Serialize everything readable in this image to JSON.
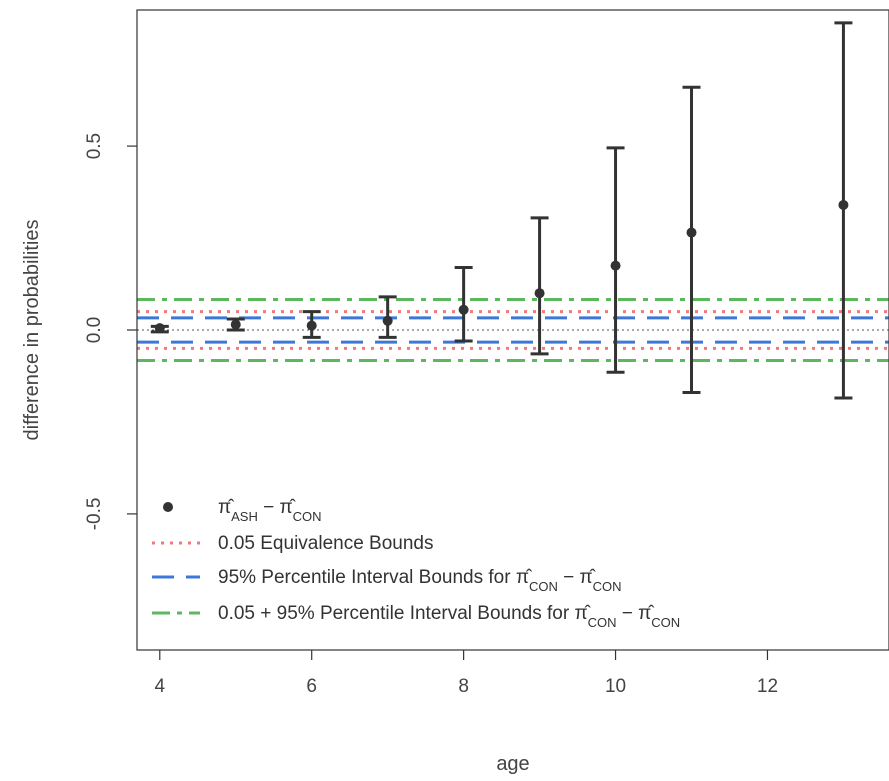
{
  "chart_data": {
    "type": "scatter",
    "xlabel": "age",
    "ylabel": "difference in probabilities",
    "xlim": [
      3.7,
      13.6
    ],
    "ylim": [
      -0.87,
      0.87
    ],
    "x_ticks": [
      4,
      6,
      8,
      10,
      12
    ],
    "y_ticks": [
      -0.5,
      0.0,
      0.5
    ],
    "x_tick_labels": [
      "4",
      "6",
      "8",
      "10",
      "12"
    ],
    "y_tick_labels": [
      "-0.5",
      "0.0",
      "0.5"
    ],
    "grid": false,
    "legend_position": "bottom-left",
    "zero_line": 0.0,
    "points": {
      "x": [
        4,
        5,
        6,
        7,
        8,
        9,
        10,
        11,
        13
      ],
      "y": [
        0.005,
        0.015,
        0.012,
        0.025,
        0.055,
        0.1,
        0.175,
        0.265,
        0.34
      ],
      "lower": [
        -0.005,
        0.0,
        -0.02,
        -0.02,
        -0.03,
        -0.065,
        -0.115,
        -0.17,
        -0.185
      ],
      "upper": [
        0.01,
        0.03,
        0.05,
        0.09,
        0.17,
        0.305,
        0.495,
        0.66,
        0.835
      ]
    },
    "bounds": [
      {
        "key": "equivalence",
        "values": [
          -0.05,
          0.05
        ],
        "color": "#f07a7a",
        "style": "dotted"
      },
      {
        "key": "percentile",
        "values": [
          -0.033,
          0.033
        ],
        "color": "#3d78d8",
        "style": "dashed"
      },
      {
        "key": "combined",
        "values": [
          -0.083,
          0.083
        ],
        "color": "#5cb85c",
        "style": "dashdot"
      }
    ],
    "point_color": "#333333",
    "legend": [
      {
        "key": "point",
        "parts": [
          "π̂",
          "ASH",
          " − ",
          "π̂",
          "CON"
        ]
      },
      {
        "key": "equivalence",
        "text": "0.05 Equivalence Bounds"
      },
      {
        "key": "percentile",
        "parts": [
          "95% Percentile Interval Bounds for ",
          "π̂",
          "CON",
          " − ",
          "π̂",
          "CON"
        ]
      },
      {
        "key": "combined",
        "parts": [
          "0.05 + 95% Percentile Interval Bounds for ",
          "π̂",
          "CON",
          " − ",
          "π̂",
          "CON"
        ]
      }
    ]
  }
}
